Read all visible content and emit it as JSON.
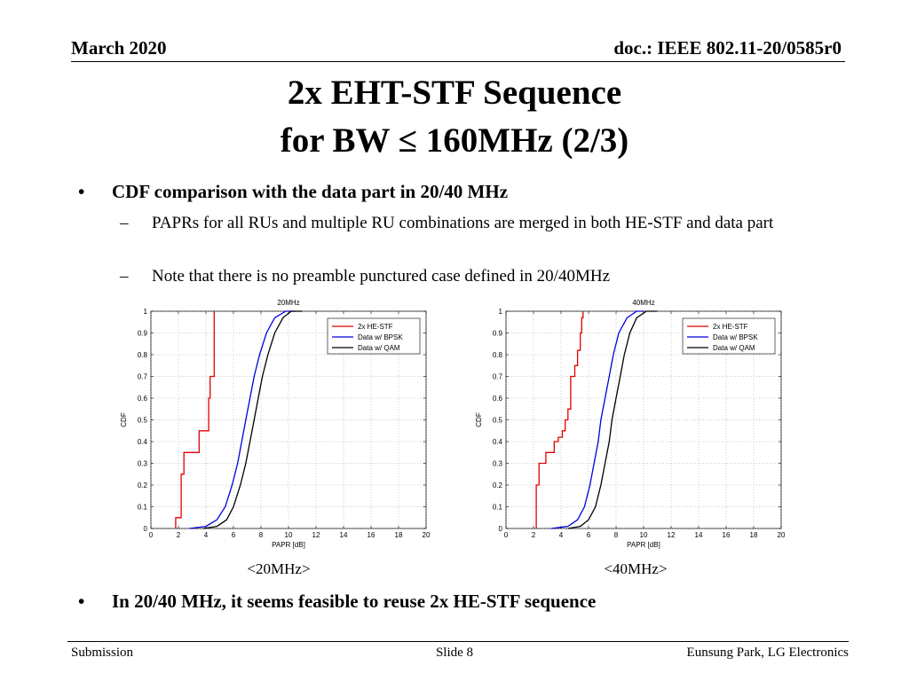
{
  "header": {
    "date": "March 2020",
    "doc": "doc.: IEEE 802.11-20/0585r0"
  },
  "title": {
    "line1": "2x EHT-STF Sequence",
    "line2": "for BW ≤ 160MHz (2/3)"
  },
  "bullets": {
    "b1": "CDF comparison with the data part in 20/40 MHz",
    "s1": "PAPRs for all RUs and multiple RU combinations are merged in both HE-STF and data part",
    "s2": "Note that there is no preamble punctured case defined in 20/40MHz",
    "b2": "In 20/40 MHz, it seems feasible to reuse 2x HE-STF sequence"
  },
  "captions": {
    "left": "<20MHz>",
    "right": "<40MHz>"
  },
  "footer": {
    "left": "Submission",
    "middle": "Slide 8",
    "right": "Eunsung Park, LG Electronics"
  },
  "chart_data": [
    {
      "type": "line",
      "title": "20MHz",
      "xlabel": "PAPR [dB]",
      "ylabel": "CDF",
      "xlim": [
        0,
        20
      ],
      "ylim": [
        0,
        1
      ],
      "xticks": [
        0,
        2,
        4,
        6,
        8,
        10,
        12,
        14,
        16,
        18,
        20
      ],
      "yticks": [
        0,
        0.1,
        0.2,
        0.3,
        0.4,
        0.5,
        0.6,
        0.7,
        0.8,
        0.9,
        1
      ],
      "grid": true,
      "legend": "top-right",
      "series": [
        {
          "name": "2x HE-STF",
          "color": "#e00000",
          "step": true,
          "points": [
            [
              1.8,
              0
            ],
            [
              1.8,
              0.05
            ],
            [
              2.2,
              0.05
            ],
            [
              2.2,
              0.25
            ],
            [
              2.4,
              0.25
            ],
            [
              2.4,
              0.35
            ],
            [
              3.5,
              0.35
            ],
            [
              3.5,
              0.45
            ],
            [
              4.2,
              0.45
            ],
            [
              4.2,
              0.6
            ],
            [
              4.3,
              0.6
            ],
            [
              4.3,
              0.7
            ],
            [
              4.6,
              0.7
            ],
            [
              4.6,
              1.0
            ]
          ]
        },
        {
          "name": "Data w/ BPSK",
          "color": "#0000e0",
          "step": false,
          "points": [
            [
              2.8,
              0
            ],
            [
              4.0,
              0.01
            ],
            [
              4.8,
              0.04
            ],
            [
              5.4,
              0.1
            ],
            [
              5.9,
              0.2
            ],
            [
              6.3,
              0.3
            ],
            [
              6.6,
              0.4
            ],
            [
              6.9,
              0.5
            ],
            [
              7.2,
              0.6
            ],
            [
              7.5,
              0.7
            ],
            [
              7.9,
              0.8
            ],
            [
              8.4,
              0.9
            ],
            [
              9.0,
              0.97
            ],
            [
              9.8,
              1.0
            ],
            [
              10.5,
              1.0
            ]
          ]
        },
        {
          "name": "Data w/ QAM",
          "color": "#000000",
          "step": false,
          "points": [
            [
              3.8,
              0
            ],
            [
              4.8,
              0.01
            ],
            [
              5.5,
              0.04
            ],
            [
              6.0,
              0.1
            ],
            [
              6.5,
              0.2
            ],
            [
              6.9,
              0.3
            ],
            [
              7.2,
              0.4
            ],
            [
              7.5,
              0.5
            ],
            [
              7.8,
              0.6
            ],
            [
              8.1,
              0.7
            ],
            [
              8.5,
              0.8
            ],
            [
              9.0,
              0.9
            ],
            [
              9.6,
              0.97
            ],
            [
              10.2,
              1.0
            ],
            [
              11.0,
              1.0
            ]
          ]
        }
      ]
    },
    {
      "type": "line",
      "title": "40MHz",
      "xlabel": "PAPR [dB]",
      "ylabel": "CDF",
      "xlim": [
        0,
        20
      ],
      "ylim": [
        0,
        1
      ],
      "xticks": [
        0,
        2,
        4,
        6,
        8,
        10,
        12,
        14,
        16,
        18,
        20
      ],
      "yticks": [
        0,
        0.1,
        0.2,
        0.3,
        0.4,
        0.5,
        0.6,
        0.7,
        0.8,
        0.9,
        1
      ],
      "grid": true,
      "legend": "top-right",
      "series": [
        {
          "name": "2x HE-STF",
          "color": "#e00000",
          "step": true,
          "points": [
            [
              2.2,
              0
            ],
            [
              2.2,
              0.2
            ],
            [
              2.4,
              0.2
            ],
            [
              2.4,
              0.3
            ],
            [
              2.9,
              0.3
            ],
            [
              2.9,
              0.35
            ],
            [
              3.5,
              0.35
            ],
            [
              3.5,
              0.4
            ],
            [
              3.8,
              0.4
            ],
            [
              3.8,
              0.42
            ],
            [
              4.1,
              0.42
            ],
            [
              4.1,
              0.45
            ],
            [
              4.3,
              0.45
            ],
            [
              4.3,
              0.5
            ],
            [
              4.5,
              0.5
            ],
            [
              4.5,
              0.55
            ],
            [
              4.7,
              0.55
            ],
            [
              4.7,
              0.7
            ],
            [
              5.0,
              0.7
            ],
            [
              5.0,
              0.75
            ],
            [
              5.2,
              0.75
            ],
            [
              5.2,
              0.82
            ],
            [
              5.4,
              0.82
            ],
            [
              5.4,
              0.9
            ],
            [
              5.5,
              0.9
            ],
            [
              5.5,
              0.97
            ],
            [
              5.6,
              0.97
            ],
            [
              5.6,
              1.0
            ]
          ]
        },
        {
          "name": "Data w/ BPSK",
          "color": "#0000e0",
          "step": false,
          "points": [
            [
              3.3,
              0
            ],
            [
              4.5,
              0.01
            ],
            [
              5.2,
              0.04
            ],
            [
              5.7,
              0.1
            ],
            [
              6.1,
              0.2
            ],
            [
              6.4,
              0.3
            ],
            [
              6.7,
              0.4
            ],
            [
              6.9,
              0.5
            ],
            [
              7.2,
              0.6
            ],
            [
              7.5,
              0.7
            ],
            [
              7.8,
              0.8
            ],
            [
              8.2,
              0.9
            ],
            [
              8.8,
              0.97
            ],
            [
              9.5,
              1.0
            ],
            [
              10.0,
              1.0
            ]
          ]
        },
        {
          "name": "Data w/ QAM",
          "color": "#000000",
          "step": false,
          "points": [
            [
              4.5,
              0
            ],
            [
              5.4,
              0.01
            ],
            [
              6.0,
              0.04
            ],
            [
              6.5,
              0.1
            ],
            [
              6.9,
              0.2
            ],
            [
              7.2,
              0.3
            ],
            [
              7.5,
              0.4
            ],
            [
              7.7,
              0.5
            ],
            [
              8.0,
              0.6
            ],
            [
              8.3,
              0.7
            ],
            [
              8.6,
              0.8
            ],
            [
              9.0,
              0.9
            ],
            [
              9.5,
              0.97
            ],
            [
              10.2,
              1.0
            ],
            [
              11.0,
              1.0
            ]
          ]
        }
      ]
    }
  ]
}
